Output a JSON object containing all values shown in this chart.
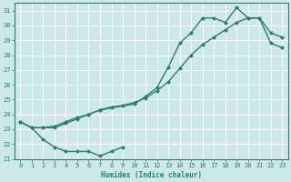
{
  "xlabel": "Humidex (Indice chaleur)",
  "bg_color": "#cce8e8",
  "grid_color": "#ffffff",
  "line_color": "#2e7d6e",
  "xlim": [
    -0.5,
    23.5
  ],
  "ylim": [
    21,
    31.5
  ],
  "xticks": [
    0,
    1,
    2,
    3,
    4,
    5,
    6,
    7,
    8,
    9,
    10,
    11,
    12,
    13,
    14,
    15,
    16,
    17,
    18,
    19,
    20,
    21,
    22,
    23
  ],
  "yticks": [
    21,
    22,
    23,
    24,
    25,
    26,
    27,
    28,
    29,
    30,
    31
  ],
  "line1_x": [
    0,
    1,
    2,
    3,
    4,
    5,
    6,
    7,
    8,
    9
  ],
  "line1_y": [
    23.5,
    23.1,
    22.3,
    21.8,
    21.5,
    21.5,
    21.5,
    21.2,
    21.5,
    21.8
  ],
  "line2_x": [
    0,
    1,
    2,
    3,
    4,
    5,
    6,
    7,
    10,
    11,
    12,
    13,
    14,
    15,
    16,
    17,
    18,
    19,
    20,
    21,
    22,
    23
  ],
  "line2_y": [
    23.5,
    23.1,
    23.1,
    23.1,
    23.4,
    23.7,
    24.0,
    24.3,
    24.7,
    25.2,
    25.8,
    27.2,
    28.8,
    29.5,
    30.5,
    30.5,
    30.2,
    31.2,
    30.5,
    30.5,
    29.5,
    29.2
  ],
  "line3_x": [
    0,
    1,
    2,
    3,
    4,
    5,
    6,
    7,
    8,
    9,
    10,
    11,
    12,
    13,
    14,
    15,
    16,
    17,
    18,
    19,
    20,
    21,
    22,
    23
  ],
  "line3_y": [
    23.5,
    23.1,
    23.1,
    23.2,
    23.5,
    23.8,
    24.0,
    24.3,
    24.5,
    24.6,
    24.8,
    25.1,
    25.6,
    26.2,
    27.1,
    28.0,
    28.7,
    29.2,
    29.7,
    30.2,
    30.5,
    30.5,
    28.8,
    28.5
  ]
}
